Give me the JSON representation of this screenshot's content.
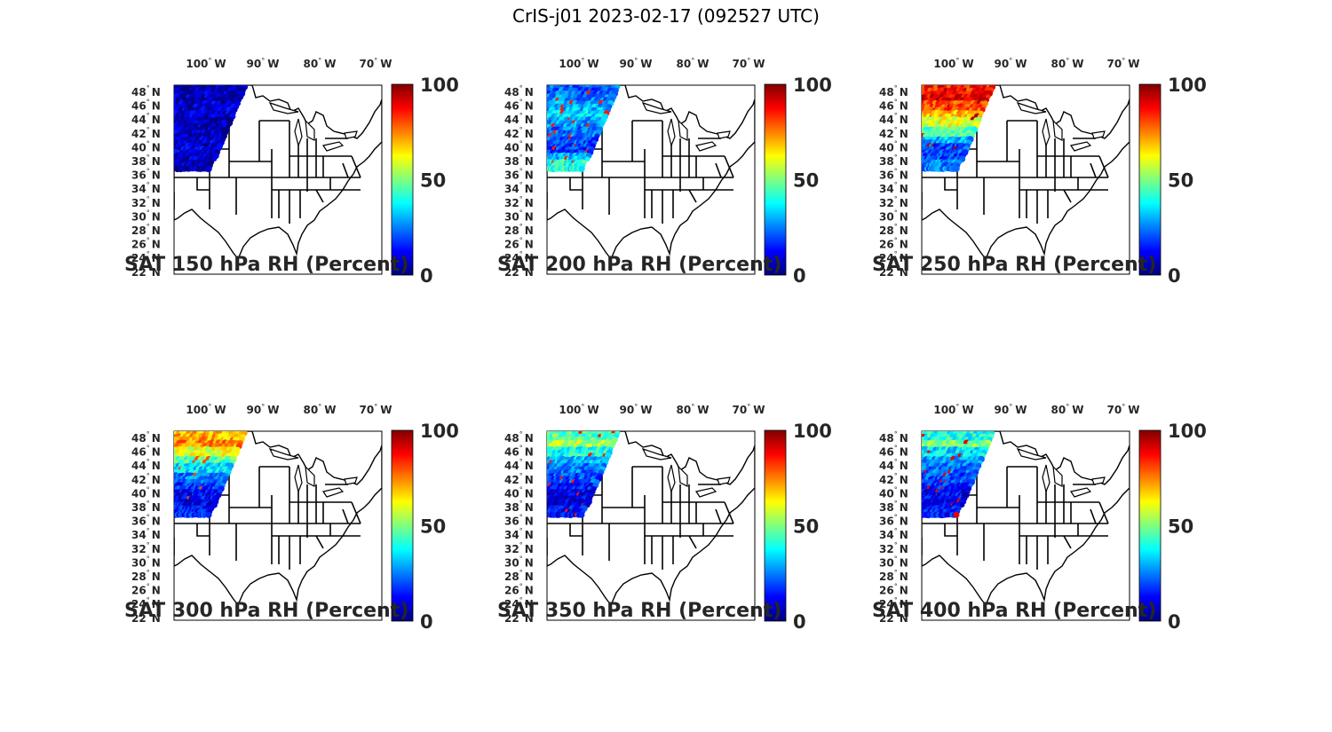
{
  "title": "CrIS-j01 2023-02-17 (092527 UTC)",
  "colors": {
    "map_fill": "#ffffff",
    "border": "#000000",
    "text": "#262626",
    "colormap": [
      "#00007f",
      "#0000ff",
      "#007fff",
      "#00ffff",
      "#7fff7f",
      "#ffff00",
      "#ff7f00",
      "#ff0000",
      "#7f0000"
    ]
  },
  "map": {
    "lon_ticks": [
      {
        "label": "100",
        "suffix": "W"
      },
      {
        "label": "90",
        "suffix": "W"
      },
      {
        "label": "80",
        "suffix": "W"
      },
      {
        "label": "70",
        "suffix": "W"
      }
    ],
    "lat_ticks": [
      {
        "label": "48",
        "suffix": "N"
      },
      {
        "label": "46",
        "suffix": "N"
      },
      {
        "label": "44",
        "suffix": "N"
      },
      {
        "label": "42",
        "suffix": "N"
      },
      {
        "label": "40",
        "suffix": "N"
      },
      {
        "label": "38",
        "suffix": "N"
      },
      {
        "label": "36",
        "suffix": "N"
      },
      {
        "label": "34",
        "suffix": "N"
      },
      {
        "label": "32",
        "suffix": "N"
      },
      {
        "label": "30",
        "suffix": "N"
      },
      {
        "label": "28",
        "suffix": "N"
      },
      {
        "label": "26",
        "suffix": "N"
      },
      {
        "label": "24",
        "suffix": "N"
      },
      {
        "label": "22",
        "suffix": "N"
      }
    ],
    "colorbar_labels": [
      "100",
      "50",
      "0"
    ],
    "colorbar_range": [
      0,
      100
    ]
  },
  "panels": [
    {
      "caption": "SAT 150 hPa RH (Percent)",
      "level_hpa": 150,
      "rh_profile": [
        5,
        6,
        7,
        6,
        5,
        6,
        7,
        8,
        6,
        5
      ],
      "rh_hotspot": 8
    },
    {
      "caption": "SAT 200 hPa RH (Percent)",
      "level_hpa": 200,
      "rh_profile": [
        22,
        25,
        30,
        35,
        28,
        24,
        20,
        18,
        30,
        40
      ],
      "rh_hotspot": 85
    },
    {
      "caption": "SAT 250 hPa RH (Percent)",
      "level_hpa": 250,
      "rh_profile": [
        85,
        90,
        80,
        70,
        60,
        45,
        30,
        20,
        18,
        25
      ],
      "rh_hotspot": 95
    },
    {
      "caption": "SAT 300 hPa RH (Percent)",
      "level_hpa": 300,
      "rh_profile": [
        70,
        75,
        60,
        45,
        35,
        25,
        18,
        12,
        10,
        15
      ],
      "rh_hotspot": 80
    },
    {
      "caption": "SAT 350 hPa RH (Percent)",
      "level_hpa": 350,
      "rh_profile": [
        45,
        55,
        40,
        30,
        25,
        20,
        15,
        10,
        8,
        12
      ],
      "rh_hotspot": 85
    },
    {
      "caption": "SAT 400 hPa RH (Percent)",
      "level_hpa": 400,
      "rh_profile": [
        40,
        50,
        35,
        28,
        24,
        20,
        16,
        12,
        10,
        14
      ],
      "rh_hotspot": 90
    }
  ]
}
